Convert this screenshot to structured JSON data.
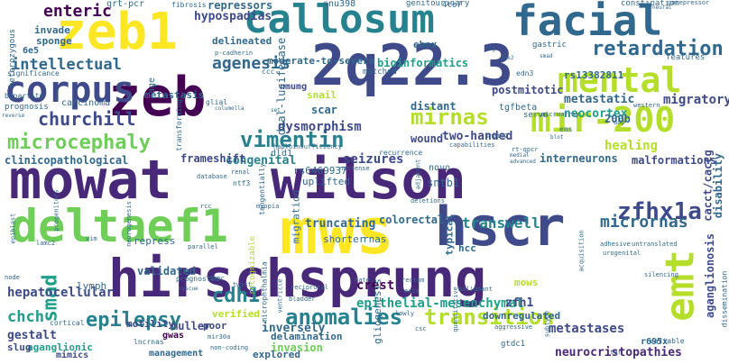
{
  "palette": {
    "background": "#ffffff",
    "colors": [
      "#440154",
      "#482878",
      "#3e4a89",
      "#31688e",
      "#26828e",
      "#1f9e89",
      "#35b779",
      "#6ece58",
      "#b5de2b",
      "#fde725"
    ]
  },
  "words": [
    {
      "text": "mowat"
    },
    {
      "text": "wilson"
    },
    {
      "text": "hirschsprung"
    },
    {
      "text": "zeb"
    },
    {
      "text": "2q22.3"
    },
    {
      "text": "zeb1"
    },
    {
      "text": "callosum"
    },
    {
      "text": "facial"
    },
    {
      "text": "mws"
    },
    {
      "text": "hscr"
    },
    {
      "text": "deltaef1"
    },
    {
      "text": "corpus"
    },
    {
      "text": "mir-200"
    },
    {
      "text": "mental"
    },
    {
      "text": "emt"
    },
    {
      "text": "microcephaly"
    },
    {
      "text": "vimentin"
    },
    {
      "text": "mirnas"
    },
    {
      "text": "zfhx1a"
    },
    {
      "text": "retardation"
    },
    {
      "text": "intellectual"
    },
    {
      "text": "agenesis"
    },
    {
      "text": "enteric"
    },
    {
      "text": "churchill"
    },
    {
      "text": "epilepsy"
    },
    {
      "text": "anomalies"
    },
    {
      "text": "transition"
    },
    {
      "text": "smad"
    },
    {
      "text": "cdh1"
    },
    {
      "text": "micrornas"
    },
    {
      "text": "transwell"
    },
    {
      "text": "chch"
    },
    {
      "text": "hepatocellular"
    },
    {
      "text": "epithelial-mesenchymal"
    },
    {
      "text": "neurocristopathies"
    },
    {
      "text": "metastases"
    },
    {
      "text": "hypospadias"
    },
    {
      "text": "repressors"
    },
    {
      "text": "moderate-to-severe"
    },
    {
      "text": "bioinformatics"
    },
    {
      "text": "dysmorphism"
    },
    {
      "text": "metastatic"
    },
    {
      "text": "migratory"
    },
    {
      "text": "neocortex"
    },
    {
      "text": "congenital"
    },
    {
      "text": "seizures"
    },
    {
      "text": "two-handed"
    },
    {
      "text": "healing"
    },
    {
      "text": "malformations"
    },
    {
      "text": "interneurons"
    },
    {
      "text": "frameshift"
    },
    {
      "text": "clinicopathological"
    },
    {
      "text": "truncating"
    },
    {
      "text": "colorectal"
    },
    {
      "text": "validated"
    },
    {
      "text": "motility"
    },
    {
      "text": "muller"
    },
    {
      "text": "inversely"
    },
    {
      "text": "crest"
    },
    {
      "text": "zfh1"
    },
    {
      "text": "downregulated"
    },
    {
      "text": "aganglionosis"
    },
    {
      "text": "invasion"
    },
    {
      "text": "delamination"
    },
    {
      "text": "explored"
    },
    {
      "text": "management"
    },
    {
      "text": "aganglionic"
    },
    {
      "text": "mimics"
    },
    {
      "text": "gestalt"
    },
    {
      "text": "slug"
    },
    {
      "text": "verified"
    },
    {
      "text": "poor"
    },
    {
      "text": "gwas"
    },
    {
      "text": "disability"
    },
    {
      "text": "cacct/caccg"
    },
    {
      "text": "r695x"
    },
    {
      "text": "mows"
    },
    {
      "text": "hcc"
    },
    {
      "text": "typical"
    },
    {
      "text": "distant"
    },
    {
      "text": "wound"
    },
    {
      "text": "ebox"
    },
    {
      "text": "200b"
    },
    {
      "text": "postmitotic"
    },
    {
      "text": "rs13382811"
    },
    {
      "text": "snail"
    },
    {
      "text": "scar"
    },
    {
      "text": "nmumg"
    },
    {
      "text": "metastasis"
    },
    {
      "text": "delineated"
    },
    {
      "text": "sponge"
    },
    {
      "text": "invade"
    },
    {
      "text": "6e5"
    },
    {
      "text": "qrt-pcr"
    },
    {
      "text": "snu398"
    },
    {
      "text": "4to7"
    },
    {
      "text": "genitourinary"
    },
    {
      "text": "constipation"
    },
    {
      "text": "corepressor"
    },
    {
      "text": "fibrosis"
    },
    {
      "text": "heterozygous"
    },
    {
      "text": "significance"
    },
    {
      "text": "prognosis"
    },
    {
      "text": "carcinoma"
    },
    {
      "text": "bipartite"
    },
    {
      "text": "p-cadherin"
    },
    {
      "text": "ccc"
    },
    {
      "text": "matched"
    },
    {
      "text": "edn3"
    },
    {
      "text": "gastric"
    },
    {
      "text": "features"
    },
    {
      "text": "western"
    },
    {
      "text": "microarray"
    },
    {
      "text": "tgfbeta"
    },
    {
      "text": "serve"
    },
    {
      "text": "ens"
    },
    {
      "text": "ddp"
    },
    {
      "text": "age"
    },
    {
      "text": "glial"
    },
    {
      "text": "columella"
    },
    {
      "text": "set"
    },
    {
      "text": "transforming"
    },
    {
      "text": "dual-luciferase"
    },
    {
      "text": "rs6469937"
    },
    {
      "text": "dld1"
    },
    {
      "text": "haploinsufficiency"
    },
    {
      "text": "nonsense"
    },
    {
      "text": "recurrence"
    },
    {
      "text": "novo"
    },
    {
      "text": "capabilities"
    },
    {
      "text": "snail2"
    },
    {
      "text": "rt-qpcr"
    },
    {
      "text": "advanced"
    },
    {
      "text": "uplifted"
    },
    {
      "text": "sntb1"
    },
    {
      "text": "adjacent"
    },
    {
      "text": "rnas"
    },
    {
      "text": "database"
    },
    {
      "text": "renal"
    },
    {
      "text": "ntf3"
    },
    {
      "text": "myopia"
    },
    {
      "text": "rcc"
    },
    {
      "text": "tangentially"
    },
    {
      "text": "migration"
    },
    {
      "text": "shorter"
    },
    {
      "text": "deletions"
    },
    {
      "text": "repress"
    },
    {
      "text": "lamc2"
    },
    {
      "text": "progenitors"
    },
    {
      "text": "vim"
    },
    {
      "text": "epiblast"
    },
    {
      "text": "neurogenesis"
    },
    {
      "text": "parallel"
    },
    {
      "text": "adhesive"
    },
    {
      "text": "urogenital"
    },
    {
      "text": "untranslated"
    },
    {
      "text": "acquisition"
    },
    {
      "text": "node"
    },
    {
      "text": "prognostic"
    },
    {
      "text": "impc"
    },
    {
      "text": "rescue"
    },
    {
      "text": "twist"
    },
    {
      "text": "reciprocal"
    },
    {
      "text": "bladder"
    },
    {
      "text": "rectum"
    },
    {
      "text": "fate"
    },
    {
      "text": "axis"
    },
    {
      "text": "malignant"
    },
    {
      "text": "silencing"
    },
    {
      "text": "dissemination"
    },
    {
      "text": "lymph"
    },
    {
      "text": "cortical"
    },
    {
      "text": "lncrnas"
    },
    {
      "text": "mir30a"
    },
    {
      "text": "non-coding"
    },
    {
      "text": "microphthalmia"
    },
    {
      "text": "gliogenesis"
    },
    {
      "text": "lowly"
    },
    {
      "text": "csc"
    },
    {
      "text": "quantitative"
    },
    {
      "text": "aggressive"
    },
    {
      "text": "subtype"
    },
    {
      "text": "gtdc1"
    },
    {
      "text": "variable"
    },
    {
      "text": "tgf"
    },
    {
      "text": "neural"
    },
    {
      "text": "reverse"
    },
    {
      "text": "blot"
    },
    {
      "text": "medial"
    },
    {
      "text": "sox2"
    },
    {
      "text": "smad"
    },
    {
      "text": "fig"
    },
    {
      "text": "recognizable"
    },
    {
      "text": "ventricle"
    }
  ]
}
